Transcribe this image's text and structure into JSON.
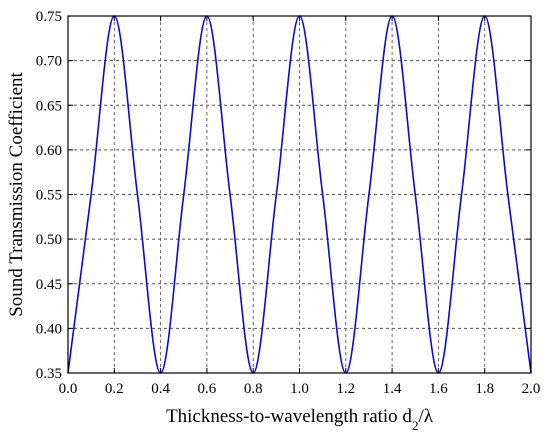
{
  "chart_data": {
    "type": "line",
    "title": "",
    "xlabel": "Thickness-to-wavelength ratio d",
    "xlabel_subscript": "2",
    "xlabel_suffix": "/λ",
    "ylabel": "Sound Transmission Coefficient",
    "xlim": [
      0.0,
      2.0
    ],
    "ylim": [
      0.35,
      0.75
    ],
    "x_ticks": [
      "0.0",
      "0.2",
      "0.4",
      "0.6",
      "0.8",
      "1.0",
      "1.2",
      "1.4",
      "1.6",
      "1.8",
      "2.0"
    ],
    "y_ticks": [
      "0.35",
      "0.40",
      "0.45",
      "0.50",
      "0.55",
      "0.60",
      "0.65",
      "0.70",
      "0.75"
    ],
    "grid": true,
    "grid_style": "dashed",
    "line_color": "#0a0ad0",
    "series": [
      {
        "x": [
          0.0,
          0.1,
          0.2,
          0.3,
          0.4,
          0.5,
          0.6,
          0.7,
          0.8,
          0.9,
          1.0,
          1.1,
          1.2,
          1.3,
          1.4,
          1.5,
          1.6,
          1.7,
          1.8,
          1.9,
          2.0
        ],
        "values": [
          0.35,
          0.55,
          0.75,
          0.55,
          0.35,
          0.55,
          0.75,
          0.55,
          0.35,
          0.55,
          0.75,
          0.55,
          0.35,
          0.55,
          0.75,
          0.55,
          0.35,
          0.55,
          0.75,
          0.55,
          0.35
        ]
      }
    ]
  }
}
